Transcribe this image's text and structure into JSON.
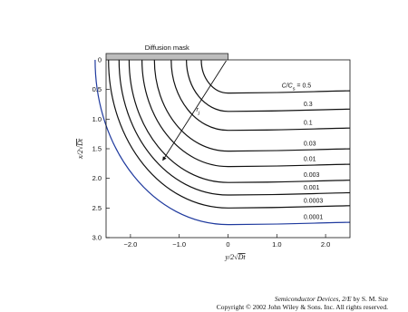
{
  "chart_data": {
    "type": "line",
    "title": "",
    "xlabel": "y/2√Dt",
    "ylabel": "x/2√Dt",
    "xlim": [
      -2.5,
      2.5
    ],
    "ylim": [
      0,
      3.0
    ],
    "y_inverted": true,
    "x_ticks": [
      "−2.0",
      "−1.0",
      "0",
      "1.0",
      "2.0"
    ],
    "x_tick_values": [
      -2.0,
      -1.0,
      0,
      1.0,
      2.0
    ],
    "y_ticks": [
      "0",
      "0.5",
      "1.0",
      "1.5",
      "2.0",
      "2.5",
      "3.0"
    ],
    "y_tick_values": [
      0,
      0.5,
      1.0,
      1.5,
      2.0,
      2.5,
      3.0
    ],
    "grid": false,
    "legend": "none",
    "mask_label": "Diffusion mask",
    "mask_x_range": [
      -2.5,
      0
    ],
    "radius_label": "r",
    "radius_subscript": "j",
    "series": [
      {
        "label": "C/C",
        "label_subscript": "s",
        "label_suffix": " = 0.5",
        "depth": 0.56
      },
      {
        "label": "0.3",
        "depth": 0.87
      },
      {
        "label": "0.1",
        "depth": 1.19
      },
      {
        "label": "0.03",
        "depth": 1.54
      },
      {
        "label": "0.01",
        "depth": 1.8
      },
      {
        "label": "0.003",
        "depth": 2.07
      },
      {
        "label": "0.001",
        "depth": 2.28
      },
      {
        "label": "0.0003",
        "depth": 2.5
      },
      {
        "label": "0.0001",
        "depth": 2.78,
        "color": "#1f3a9e"
      }
    ]
  },
  "credit": {
    "book_title": "Semiconductor Devices, 2/E",
    "author": " by S. M. Sze",
    "copyright": "Copyright © 2002 John Wiley & Sons. Inc. All rights reserved."
  }
}
